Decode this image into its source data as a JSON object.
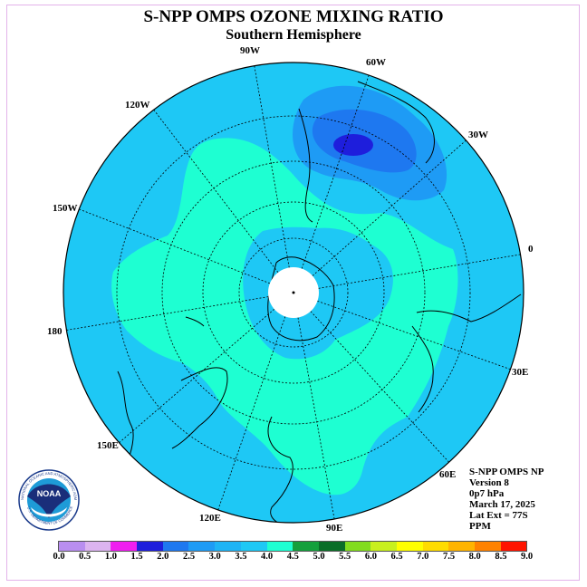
{
  "title": "S-NPP OMPS OZONE MIXING RATIO",
  "subtitle": "Southern Hemisphere",
  "longitude_labels": {
    "l90w": "90W",
    "l60w": "60W",
    "l30w": "30W",
    "l120w": "120W",
    "l150w": "150W",
    "l0": "0",
    "l180": "180",
    "l30e": "30E",
    "l150e": "150E",
    "l60e": "60E",
    "l120e": "120E",
    "l90e": "90E"
  },
  "info": {
    "instrument": "S-NPP OMPS NP",
    "version": "Version 8",
    "level": "0p7 hPa",
    "date": "March 17, 2025",
    "lat_ext": "Lat Ext = 77S",
    "units": "PPM"
  },
  "logo": {
    "text": "NOAA",
    "ring_text": "NATIONAL OCEANIC AND ATMOSPHERIC ADMINISTRATION",
    "dept_text": "U.S. DEPARTMENT OF COMMERCE"
  },
  "colorbar": {
    "ticks": [
      "0.0",
      "0.5",
      "1.0",
      "1.5",
      "2.0",
      "2.5",
      "3.0",
      "3.5",
      "4.0",
      "4.5",
      "5.0",
      "5.5",
      "6.0",
      "6.5",
      "7.0",
      "7.5",
      "8.0",
      "8.5",
      "9.0"
    ],
    "colors": [
      "#b98ef0",
      "#dcb4f0",
      "#f01ef0",
      "#1e1edc",
      "#1e78f0",
      "#1e9bf5",
      "#1eb4f5",
      "#1ec8f5",
      "#1effd2",
      "#14a03c",
      "#0a6e28",
      "#82dc1e",
      "#c8f01e",
      "#ffff00",
      "#ffdc00",
      "#ffb400",
      "#ff8200",
      "#ff1400",
      "#b4144b",
      "#7d4b28"
    ]
  },
  "map_colors": {
    "background_level": "#1ec8f5",
    "mid_band": "#1effd2",
    "high_a": "#1e9bf5",
    "high_b": "#1e78f0",
    "peak": "#1e1edc",
    "pole_mask": "#ffffff"
  }
}
